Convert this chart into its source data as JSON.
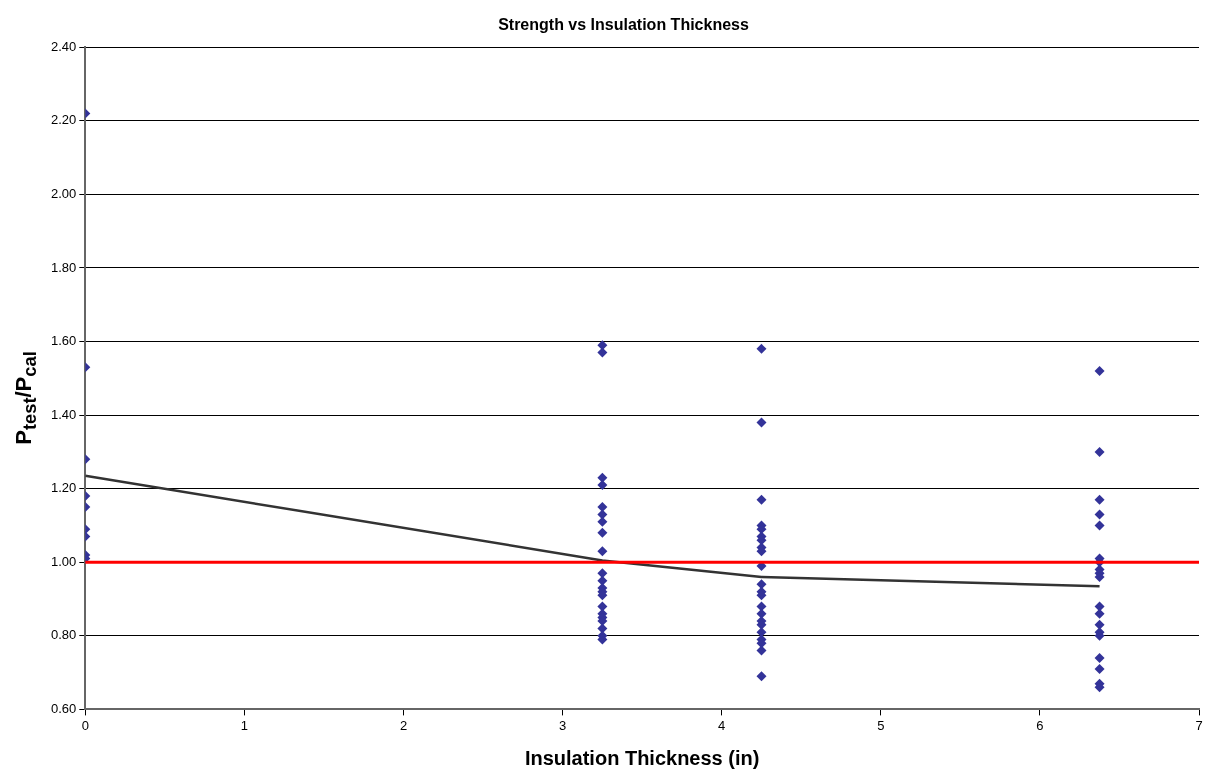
{
  "chart_data": {
    "type": "scatter",
    "title": "Strength vs Insulation Thickness",
    "xlabel": "Insulation Thickness (in)",
    "ylabel": "P$_{test}$/P$_{cal}$",
    "xlim": [
      0,
      7
    ],
    "xticks": [
      0,
      1,
      2,
      3,
      4,
      5,
      6,
      7
    ],
    "ylim": [
      0.6,
      2.4
    ],
    "yticks": [
      {
        "value": 0.6,
        "label": "0.60"
      },
      {
        "value": 0.8,
        "label": "0.80"
      },
      {
        "value": 1.0,
        "label": "1.00"
      },
      {
        "value": 1.2,
        "label": "1.20"
      },
      {
        "value": 1.4,
        "label": "1.40"
      },
      {
        "value": 1.6,
        "label": "1.60"
      },
      {
        "value": 1.8,
        "label": "1.80"
      },
      {
        "value": 2.0,
        "label": "2.00"
      },
      {
        "value": 2.2,
        "label": "2.20"
      },
      {
        "value": 2.4,
        "label": "2.40"
      }
    ],
    "grid": "y",
    "legend": false,
    "marker": "diamond",
    "series": [
      {
        "type": "scatter",
        "color": "#333399",
        "x": [
          0,
          0,
          0,
          0,
          0,
          0,
          0,
          0,
          0,
          3.25,
          3.25,
          3.25,
          3.25,
          3.25,
          3.25,
          3.25,
          3.25,
          3.25,
          3.25,
          3.25,
          3.25,
          3.25,
          3.25,
          3.25,
          3.25,
          3.25,
          3.25,
          3.25,
          3.25,
          3.25,
          4.25,
          4.25,
          4.25,
          4.25,
          4.25,
          4.25,
          4.25,
          4.25,
          4.25,
          4.25,
          4.25,
          4.25,
          4.25,
          4.25,
          4.25,
          4.25,
          4.25,
          4.25,
          4.25,
          4.25,
          4.25,
          4.25,
          6.375,
          6.375,
          6.375,
          6.375,
          6.375,
          6.375,
          6.375,
          6.375,
          6.375,
          6.375,
          6.375,
          6.375,
          6.375,
          6.375,
          6.375,
          6.375,
          6.375,
          6.375,
          6.375
        ],
        "values": [
          2.22,
          1.53,
          1.28,
          1.18,
          1.15,
          1.09,
          1.07,
          1.02,
          1.01,
          1.59,
          1.57,
          1.23,
          1.21,
          1.15,
          1.13,
          1.11,
          1.08,
          1.03,
          0.97,
          0.95,
          0.93,
          0.92,
          0.91,
          0.88,
          0.86,
          0.85,
          0.84,
          0.82,
          0.8,
          0.79,
          1.58,
          1.38,
          1.17,
          1.1,
          1.09,
          1.07,
          1.06,
          1.04,
          1.03,
          0.99,
          0.94,
          0.92,
          0.91,
          0.88,
          0.86,
          0.84,
          0.83,
          0.81,
          0.79,
          0.78,
          0.76,
          0.69,
          1.52,
          1.3,
          1.17,
          1.13,
          1.1,
          1.01,
          1.0,
          0.98,
          0.97,
          0.96,
          0.88,
          0.86,
          0.83,
          0.81,
          0.8,
          0.74,
          0.71,
          0.67,
          0.66
        ]
      },
      {
        "type": "line",
        "color": "#333333",
        "marker": "none",
        "x": [
          0,
          3.25,
          4.25,
          6.375
        ],
        "values": [
          1.235,
          1.005,
          0.96,
          0.935
        ]
      }
    ],
    "ref_lines": [
      {
        "axis": "y",
        "value": 1.0,
        "color": "#ff0000"
      }
    ]
  }
}
